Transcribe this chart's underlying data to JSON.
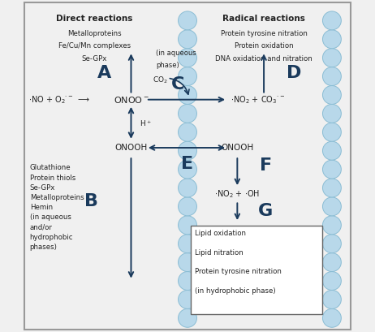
{
  "bg_color": "#f0f0f0",
  "border_color": "#999999",
  "arrow_color": "#1a3a5c",
  "bubble_color": "#b8d8ea",
  "bubble_edge_color": "#8bbdd4",
  "text_color": "#222222",
  "label_color": "#1a3a5c",
  "direct_reactions_title": "Direct reactions",
  "radical_reactions_title": "Radical reactions",
  "direct_reactions_items": [
    "Metalloproteins",
    "Fe/Cu/Mn complexes",
    "Se-GPx"
  ],
  "radical_reactions_items": [
    "Protein tyrosine nitration",
    "Protein oxidation",
    "DNA oxidation and nitration"
  ],
  "in_aqueous_label1": "(in aqueous",
  "in_aqueous_label2": "phase)",
  "co2_label": "CO₂",
  "hplus_label": "H⁺",
  "label_A": "A",
  "label_B": "B",
  "label_C": "C",
  "label_D": "D",
  "label_E": "E",
  "label_F": "F",
  "label_G": "G",
  "b_items": [
    "Glutathione",
    "Protein thiols",
    "Se-GPx",
    "Metalloproteins",
    "Hemin",
    "(in aqueous",
    "and/or",
    "hydrophobic",
    "phases)"
  ],
  "g_items": [
    "Lipid oxidation",
    "Lipid nitration",
    "Protein tyrosine nitration",
    "(in hydrophobic phase)"
  ]
}
